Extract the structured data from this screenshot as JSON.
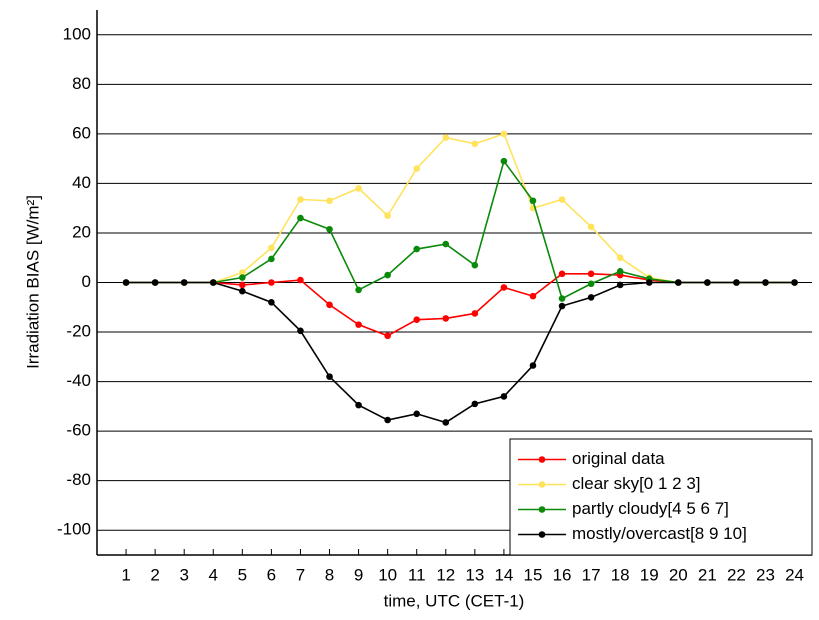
{
  "chart_data": {
    "type": "line",
    "x_label": "time, UTC (CET-1)",
    "y_label": "Irradiation BIAS [W/m²]",
    "x": [
      1,
      2,
      3,
      4,
      5,
      6,
      7,
      8,
      9,
      10,
      11,
      12,
      13,
      14,
      15,
      16,
      17,
      18,
      19,
      20,
      21,
      22,
      23,
      24
    ],
    "series": [
      {
        "name": "original data",
        "color": "#ff0000",
        "values": [
          0,
          0,
          0,
          0,
          -1,
          0,
          1,
          -9,
          -17,
          -21.5,
          -15,
          -14.5,
          -12.5,
          -2,
          -5.5,
          3.5,
          3.5,
          3,
          1,
          0,
          0,
          0,
          0,
          0
        ]
      },
      {
        "name": "clear sky[0 1 2 3]",
        "color": "#ffe35c",
        "values": [
          0,
          0,
          0,
          0,
          4,
          14,
          33.5,
          33,
          38,
          27,
          46,
          58.5,
          56,
          60,
          30,
          33.5,
          22.5,
          10,
          2,
          0,
          0,
          0,
          0,
          0
        ]
      },
      {
        "name": "partly cloudy[4 5 6 7]",
        "color": "#0a8a0a",
        "values": [
          0,
          0,
          0,
          0,
          2,
          9.5,
          26,
          21.5,
          -3,
          3,
          13.5,
          15.5,
          7,
          49,
          33,
          -6.5,
          -0.5,
          4.5,
          1.5,
          0,
          0,
          0,
          0,
          0
        ]
      },
      {
        "name": "mostly/overcast[8 9 10]",
        "color": "#000000",
        "values": [
          0,
          0,
          0,
          0,
          -3.5,
          -8,
          -19.5,
          -38,
          -49.5,
          -55.5,
          -53,
          -56.5,
          -49,
          -46,
          -33.5,
          -9.5,
          -6,
          -1,
          0,
          0,
          0,
          0,
          0,
          0
        ]
      }
    ],
    "xlim": [
      0,
      24.6
    ],
    "ylim": [
      -110,
      110
    ],
    "xticks": [
      1,
      2,
      3,
      4,
      5,
      6,
      7,
      8,
      9,
      10,
      11,
      12,
      13,
      14,
      15,
      16,
      17,
      18,
      19,
      20,
      21,
      22,
      23,
      24
    ],
    "yticks": [
      -100,
      -80,
      -60,
      -40,
      -20,
      0,
      20,
      40,
      60,
      80,
      100
    ],
    "grid": true,
    "legend": "lower right"
  }
}
